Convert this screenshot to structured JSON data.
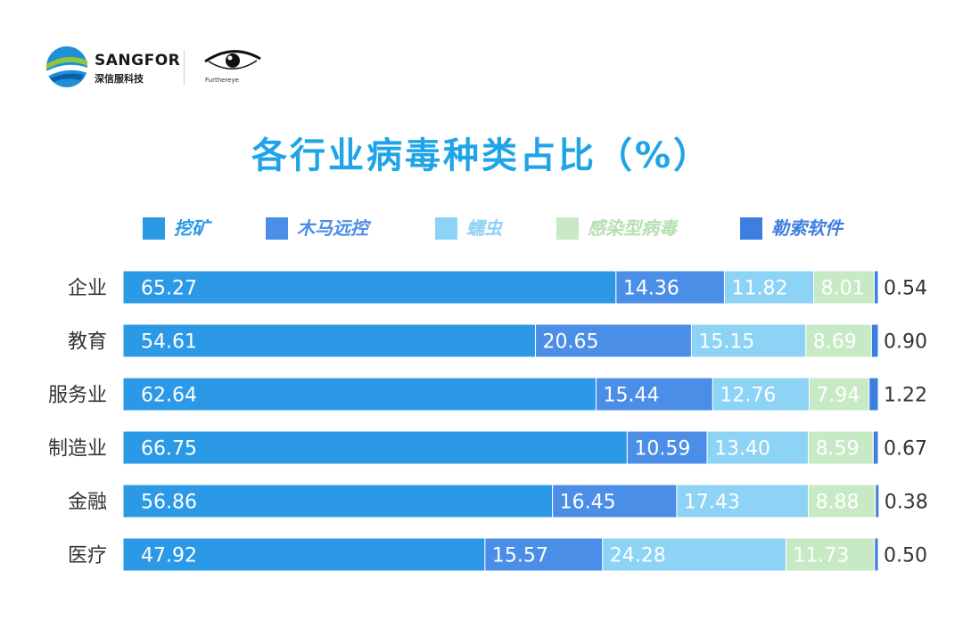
{
  "brand": {
    "name": "SANGFOR",
    "sub": "深信服科技",
    "partner_sub": "Furthereye"
  },
  "colors": {
    "title": "#1fa4e8",
    "mining": "#2c99e6",
    "trojan": "#4b8ee7",
    "worm": "#8dd3f5",
    "infect": "#c7eac4",
    "ransom": "#3d7fe0"
  },
  "chart_data": {
    "type": "bar",
    "orientation": "horizontal",
    "stacked": true,
    "title": "各行业病毒种类占比（%）",
    "categories": [
      "企业",
      "教育",
      "服务业",
      "制造业",
      "金融",
      "医疗"
    ],
    "series": [
      {
        "name": "挖矿",
        "values": [
          65.27,
          54.61,
          62.64,
          66.75,
          56.86,
          47.92
        ],
        "labels": [
          "65.27",
          "54.61",
          "62.64",
          "66.75",
          "56.86",
          "47.92"
        ],
        "color": "#2c99e6"
      },
      {
        "name": "木马远控",
        "values": [
          14.36,
          20.65,
          15.44,
          10.59,
          16.45,
          15.57
        ],
        "labels": [
          "14.36",
          "20.65",
          "15.44",
          "10.59",
          "16.45",
          "15.57"
        ],
        "color": "#4b8ee7"
      },
      {
        "name": "蠕虫",
        "values": [
          11.82,
          15.15,
          12.76,
          13.4,
          17.43,
          24.28
        ],
        "labels": [
          "11.82",
          "15.15",
          "12.76",
          "13.40",
          "17.43",
          "24.28"
        ],
        "color": "#8dd3f5"
      },
      {
        "name": "感染型病毒",
        "values": [
          8.01,
          8.69,
          7.94,
          8.59,
          8.88,
          11.73
        ],
        "labels": [
          "8.01",
          "8.69",
          "7.94",
          "8.59",
          "8.88",
          "11.73"
        ],
        "color": "#c7eac4"
      },
      {
        "name": "勒索软件",
        "values": [
          0.54,
          0.9,
          1.22,
          0.67,
          0.38,
          0.5
        ],
        "labels": [
          "0.54",
          "0.90",
          "1.22",
          "0.67",
          "0.38",
          "0.50"
        ],
        "color": "#3d7fe0"
      }
    ],
    "xlim": [
      0,
      100
    ],
    "grid": false,
    "legend": "top"
  }
}
